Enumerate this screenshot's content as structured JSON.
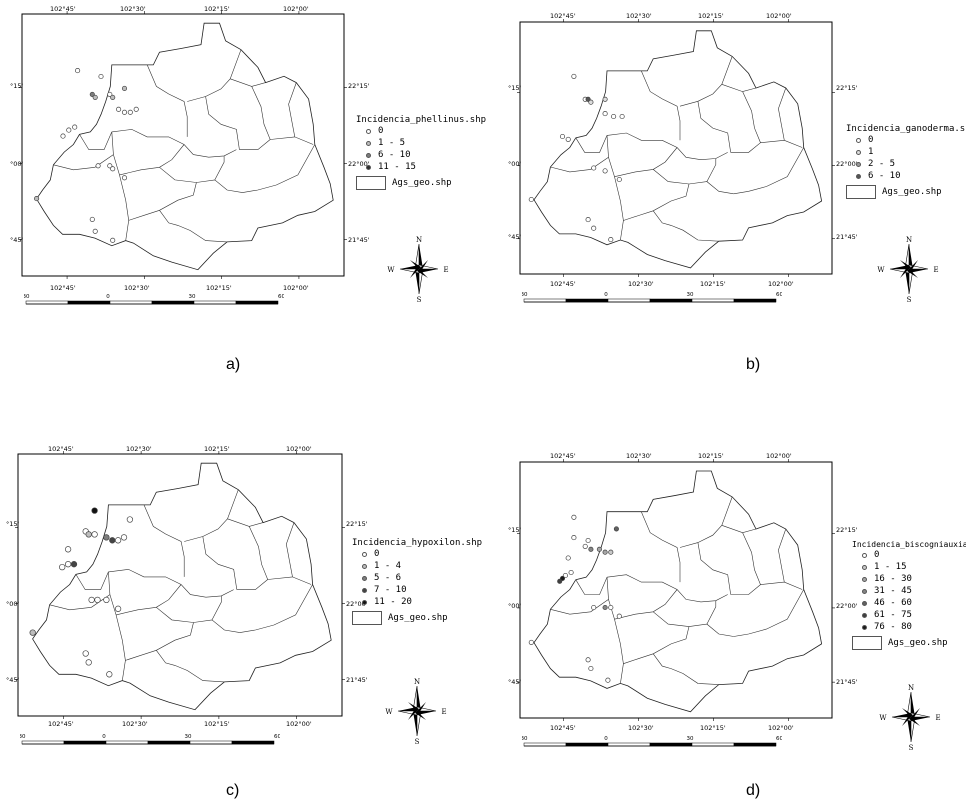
{
  "panels": [
    {
      "caption": "a)",
      "legend_title": "Incidencia_phellinus.shp",
      "classes": [
        {
          "label": "0",
          "color": "#ffffff"
        },
        {
          "label": "1 - 5",
          "color": "#bdbdbd"
        },
        {
          "label": "6 - 10",
          "color": "#7d7d7d"
        },
        {
          "label": "11 - 15",
          "color": "#2e2e2e"
        }
      ],
      "boundary_label": "Ags_geo.shp",
      "points": [
        {
          "lon": -102.71,
          "lat": 22.29,
          "cls": 0
        },
        {
          "lon": -102.63,
          "lat": 22.27,
          "cls": 0
        },
        {
          "lon": -102.66,
          "lat": 22.21,
          "cls": 2
        },
        {
          "lon": -102.65,
          "lat": 22.2,
          "cls": 1
        },
        {
          "lon": -102.6,
          "lat": 22.21,
          "cls": 0
        },
        {
          "lon": -102.59,
          "lat": 22.2,
          "cls": 1
        },
        {
          "lon": -102.55,
          "lat": 22.23,
          "cls": 1
        },
        {
          "lon": -102.57,
          "lat": 22.16,
          "cls": 0
        },
        {
          "lon": -102.55,
          "lat": 22.15,
          "cls": 0
        },
        {
          "lon": -102.53,
          "lat": 22.15,
          "cls": 0
        },
        {
          "lon": -102.51,
          "lat": 22.16,
          "cls": 0
        },
        {
          "lon": -102.72,
          "lat": 22.1,
          "cls": 0
        },
        {
          "lon": -102.74,
          "lat": 22.09,
          "cls": 0
        },
        {
          "lon": -102.76,
          "lat": 22.07,
          "cls": 0
        },
        {
          "lon": -102.64,
          "lat": 21.97,
          "cls": 0
        },
        {
          "lon": -102.6,
          "lat": 21.97,
          "cls": 0
        },
        {
          "lon": -102.59,
          "lat": 21.96,
          "cls": 0
        },
        {
          "lon": -102.55,
          "lat": 21.93,
          "cls": 0
        },
        {
          "lon": -102.85,
          "lat": 21.86,
          "cls": 1
        },
        {
          "lon": -102.66,
          "lat": 21.79,
          "cls": 0
        },
        {
          "lon": -102.65,
          "lat": 21.75,
          "cls": 0
        },
        {
          "lon": -102.59,
          "lat": 21.72,
          "cls": 0
        }
      ]
    },
    {
      "caption": "b)",
      "legend_title": "Incidencia_ganoderma.shp",
      "classes": [
        {
          "label": "0",
          "color": "#ffffff"
        },
        {
          "label": "1",
          "color": "#dcdcdc"
        },
        {
          "label": "2 - 5",
          "color": "#9a9a9a"
        },
        {
          "label": "6 - 10",
          "color": "#555555"
        }
      ],
      "boundary_label": "Ags_geo.shp",
      "points": [
        {
          "lon": -102.71,
          "lat": 22.29,
          "cls": 0
        },
        {
          "lon": -102.67,
          "lat": 22.21,
          "cls": 0
        },
        {
          "lon": -102.66,
          "lat": 22.21,
          "cls": 3
        },
        {
          "lon": -102.65,
          "lat": 22.2,
          "cls": 1
        },
        {
          "lon": -102.6,
          "lat": 22.21,
          "cls": 1
        },
        {
          "lon": -102.6,
          "lat": 22.16,
          "cls": 0
        },
        {
          "lon": -102.57,
          "lat": 22.15,
          "cls": 0
        },
        {
          "lon": -102.54,
          "lat": 22.15,
          "cls": 0
        },
        {
          "lon": -102.75,
          "lat": 22.08,
          "cls": 0
        },
        {
          "lon": -102.73,
          "lat": 22.07,
          "cls": 0
        },
        {
          "lon": -102.64,
          "lat": 21.97,
          "cls": 0
        },
        {
          "lon": -102.6,
          "lat": 21.96,
          "cls": 0
        },
        {
          "lon": -102.55,
          "lat": 21.93,
          "cls": 0
        },
        {
          "lon": -102.86,
          "lat": 21.86,
          "cls": 0
        },
        {
          "lon": -102.66,
          "lat": 21.79,
          "cls": 0
        },
        {
          "lon": -102.64,
          "lat": 21.76,
          "cls": 0
        },
        {
          "lon": -102.58,
          "lat": 21.72,
          "cls": 0
        }
      ]
    },
    {
      "caption": "c)",
      "legend_title": "Incidencia_hypoxilon.shp",
      "classes": [
        {
          "label": "0",
          "color": "#ffffff"
        },
        {
          "label": "1 - 4",
          "color": "#bdbdbd"
        },
        {
          "label": "5 - 6",
          "color": "#7d7d7d"
        },
        {
          "label": "7 - 10",
          "color": "#444444"
        },
        {
          "label": "11 - 20",
          "color": "#111111"
        }
      ],
      "boundary_label": "Ags_geo.shp",
      "points": [
        {
          "lon": -102.64,
          "lat": 22.29,
          "cls": 4
        },
        {
          "lon": -102.52,
          "lat": 22.26,
          "cls": 0
        },
        {
          "lon": -102.67,
          "lat": 22.22,
          "cls": 0
        },
        {
          "lon": -102.66,
          "lat": 22.21,
          "cls": 1
        },
        {
          "lon": -102.64,
          "lat": 22.21,
          "cls": 0
        },
        {
          "lon": -102.6,
          "lat": 22.2,
          "cls": 2
        },
        {
          "lon": -102.58,
          "lat": 22.19,
          "cls": 3
        },
        {
          "lon": -102.56,
          "lat": 22.19,
          "cls": 0
        },
        {
          "lon": -102.54,
          "lat": 22.2,
          "cls": 0
        },
        {
          "lon": -102.73,
          "lat": 22.16,
          "cls": 0
        },
        {
          "lon": -102.75,
          "lat": 22.1,
          "cls": 0
        },
        {
          "lon": -102.73,
          "lat": 22.11,
          "cls": 0
        },
        {
          "lon": -102.71,
          "lat": 22.11,
          "cls": 3
        },
        {
          "lon": -102.65,
          "lat": 21.99,
          "cls": 0
        },
        {
          "lon": -102.63,
          "lat": 21.99,
          "cls": 0
        },
        {
          "lon": -102.6,
          "lat": 21.99,
          "cls": 0
        },
        {
          "lon": -102.56,
          "lat": 21.96,
          "cls": 0
        },
        {
          "lon": -102.85,
          "lat": 21.88,
          "cls": 1
        },
        {
          "lon": -102.67,
          "lat": 21.81,
          "cls": 0
        },
        {
          "lon": -102.66,
          "lat": 21.78,
          "cls": 0
        },
        {
          "lon": -102.59,
          "lat": 21.74,
          "cls": 0
        }
      ]
    },
    {
      "caption": "d)",
      "legend_title": "Incidencia_biscogniauxia.shp",
      "classes": [
        {
          "label": "0",
          "color": "#ffffff"
        },
        {
          "label": "1 - 15",
          "color": "#c8c8c8"
        },
        {
          "label": "16 - 30",
          "color": "#a5a5a5"
        },
        {
          "label": "31 - 45",
          "color": "#858585"
        },
        {
          "label": "46 - 60",
          "color": "#626262"
        },
        {
          "label": "61 - 75",
          "color": "#3f3f3f"
        },
        {
          "label": "76 - 80",
          "color": "#1a1a1a"
        }
      ],
      "boundary_label": "Ags_geo.shp",
      "points": [
        {
          "lon": -102.71,
          "lat": 22.29,
          "cls": 0
        },
        {
          "lon": -102.56,
          "lat": 22.25,
          "cls": 4
        },
        {
          "lon": -102.71,
          "lat": 22.22,
          "cls": 0
        },
        {
          "lon": -102.66,
          "lat": 22.21,
          "cls": 0
        },
        {
          "lon": -102.67,
          "lat": 22.19,
          "cls": 0
        },
        {
          "lon": -102.65,
          "lat": 22.18,
          "cls": 3
        },
        {
          "lon": -102.62,
          "lat": 22.18,
          "cls": 2
        },
        {
          "lon": -102.6,
          "lat": 22.17,
          "cls": 2
        },
        {
          "lon": -102.58,
          "lat": 22.17,
          "cls": 1
        },
        {
          "lon": -102.73,
          "lat": 22.15,
          "cls": 0
        },
        {
          "lon": -102.74,
          "lat": 22.09,
          "cls": 0
        },
        {
          "lon": -102.75,
          "lat": 22.08,
          "cls": 6
        },
        {
          "lon": -102.76,
          "lat": 22.07,
          "cls": 5
        },
        {
          "lon": -102.72,
          "lat": 22.1,
          "cls": 0
        },
        {
          "lon": -102.64,
          "lat": 21.98,
          "cls": 0
        },
        {
          "lon": -102.6,
          "lat": 21.98,
          "cls": 3
        },
        {
          "lon": -102.58,
          "lat": 21.98,
          "cls": 0
        },
        {
          "lon": -102.55,
          "lat": 21.95,
          "cls": 0
        },
        {
          "lon": -102.86,
          "lat": 21.86,
          "cls": 0
        },
        {
          "lon": -102.66,
          "lat": 21.8,
          "cls": 0
        },
        {
          "lon": -102.65,
          "lat": 21.77,
          "cls": 0
        },
        {
          "lon": -102.59,
          "lat": 21.73,
          "cls": 0
        }
      ]
    }
  ],
  "graticule": {
    "lon_labels": [
      "102°45'",
      "102°30'",
      "102°15'",
      "102°00'"
    ],
    "lat_labels_left": [
      "°15'",
      "°00'",
      "°45'"
    ],
    "lat_labels_right": [
      "22°15'",
      "22°00'",
      "21°45'"
    ]
  },
  "scale_labels": [
    "30",
    "0",
    "30",
    "60 Kilometers"
  ],
  "compass": {
    "n": "N",
    "s": "S",
    "e": "E",
    "w": "W"
  }
}
